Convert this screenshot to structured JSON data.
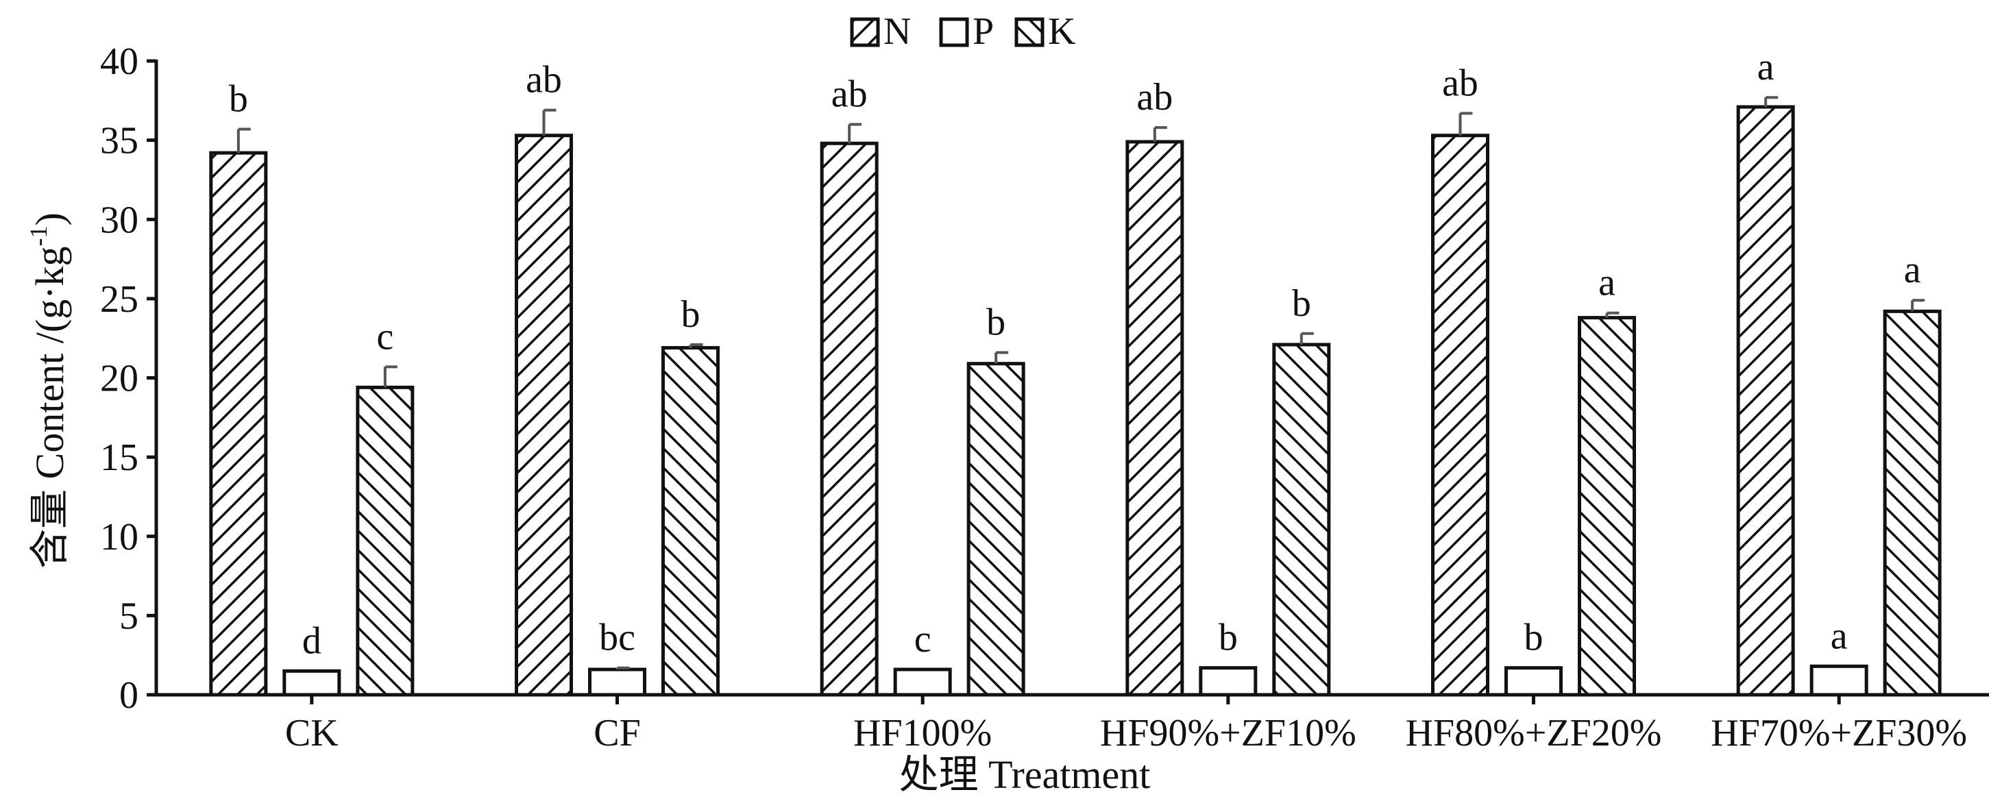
{
  "chart_data": {
    "type": "bar",
    "categories": [
      "CK",
      "CF",
      "HF100%",
      "HF90%+ZF10%",
      "HF80%+ZF20%",
      "HF70%+ZF30%"
    ],
    "series": [
      {
        "name": "N",
        "pattern": "diag-right",
        "values": [
          34.2,
          35.3,
          34.8,
          34.9,
          35.3,
          37.1
        ],
        "errors": [
          1.5,
          1.6,
          1.2,
          0.9,
          1.4,
          0.6
        ],
        "labels": [
          "b",
          "ab",
          "ab",
          "ab",
          "ab",
          "a"
        ]
      },
      {
        "name": "P",
        "pattern": "white",
        "values": [
          1.5,
          1.6,
          1.6,
          1.7,
          1.7,
          1.8
        ],
        "errors": [
          0.0,
          0.1,
          0.0,
          0.0,
          0.0,
          0.0
        ],
        "labels": [
          "d",
          "bc",
          "c",
          "b",
          "b",
          "a"
        ]
      },
      {
        "name": "K",
        "pattern": "diag-left",
        "values": [
          19.4,
          21.9,
          20.9,
          22.1,
          23.8,
          24.2
        ],
        "errors": [
          1.3,
          0.2,
          0.7,
          0.7,
          0.3,
          0.7
        ],
        "labels": [
          "c",
          "b",
          "b",
          "b",
          "a",
          "a"
        ]
      }
    ],
    "ylim": [
      0,
      40
    ],
    "yticks": [
      "0",
      "5",
      "10",
      "15",
      "20",
      "25",
      "30",
      "35",
      "40"
    ],
    "xlabel": "处理 Treatment",
    "ylabel": "含量 Content /(g·kg",
    "ylabel_sup": "-1",
    "ylabel_close": ")",
    "legend_position": "top-center",
    "colors": {
      "ink": "#111111",
      "error_bar": "#555555",
      "background": "#ffffff"
    }
  }
}
